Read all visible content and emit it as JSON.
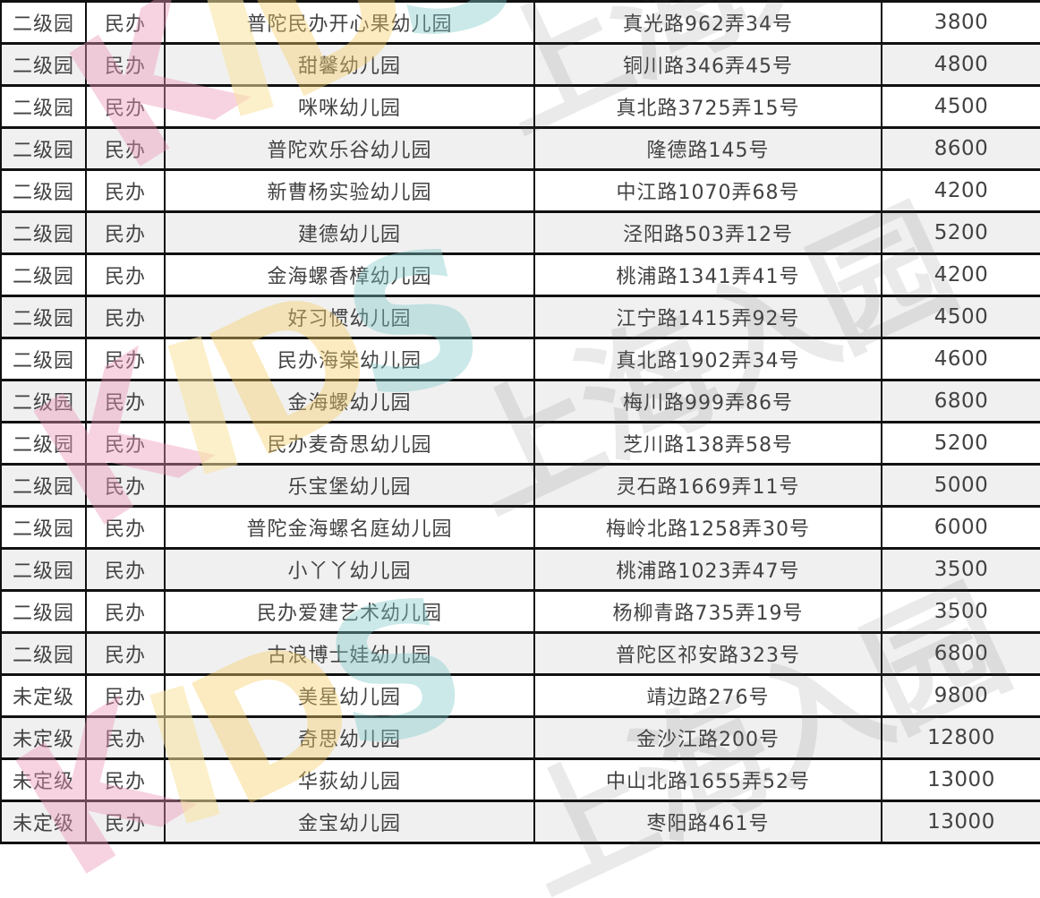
{
  "table": {
    "column_keys": [
      "level",
      "type",
      "name",
      "address",
      "price"
    ],
    "rows": [
      {
        "level": "二级园",
        "type": "民办",
        "name": "普陀民办开心果幼儿园",
        "address": "真光路962弄34号",
        "price": "3800"
      },
      {
        "level": "二级园",
        "type": "民办",
        "name": "甜馨幼儿园",
        "address": "铜川路346弄45号",
        "price": "4800"
      },
      {
        "level": "二级园",
        "type": "民办",
        "name": "咪咪幼儿园",
        "address": "真北路3725弄15号",
        "price": "4500"
      },
      {
        "level": "二级园",
        "type": "民办",
        "name": "普陀欢乐谷幼儿园",
        "address": "隆德路145号",
        "price": "8600"
      },
      {
        "level": "二级园",
        "type": "民办",
        "name": "新曹杨实验幼儿园",
        "address": "中江路1070弄68号",
        "price": "4200"
      },
      {
        "level": "二级园",
        "type": "民办",
        "name": "建德幼儿园",
        "address": "泾阳路503弄12号",
        "price": "5200"
      },
      {
        "level": "二级园",
        "type": "民办",
        "name": "金海螺香樟幼儿园",
        "address": "桃浦路1341弄41号",
        "price": "4200"
      },
      {
        "level": "二级园",
        "type": "民办",
        "name": "好习惯幼儿园",
        "address": "江宁路1415弄92号",
        "price": "4500"
      },
      {
        "level": "二级园",
        "type": "民办",
        "name": "民办海棠幼儿园",
        "address": "真北路1902弄34号",
        "price": "4600"
      },
      {
        "level": "二级园",
        "type": "民办",
        "name": "金海螺幼儿园",
        "address": "梅川路999弄86号",
        "price": "6800"
      },
      {
        "level": "二级园",
        "type": "民办",
        "name": "民办麦奇思幼儿园",
        "address": "芝川路138弄58号",
        "price": "5200"
      },
      {
        "level": "二级园",
        "type": "民办",
        "name": "乐宝堡幼儿园",
        "address": "灵石路1669弄11号",
        "price": "5000"
      },
      {
        "level": "二级园",
        "type": "民办",
        "name": "普陀金海螺名庭幼儿园",
        "address": "梅岭北路1258弄30号",
        "price": "6000"
      },
      {
        "level": "二级园",
        "type": "民办",
        "name": "小丫丫幼儿园",
        "address": "桃浦路1023弄47号",
        "price": "3500"
      },
      {
        "level": "二级园",
        "type": "民办",
        "name": "民办爱建艺术幼儿园",
        "address": "杨柳青路735弄19号",
        "price": "3500"
      },
      {
        "level": "二级园",
        "type": "民办",
        "name": "古浪博士娃幼儿园",
        "address": "普陀区祁安路323号",
        "price": "6800"
      },
      {
        "level": "未定级",
        "type": "民办",
        "name": "美星幼儿园",
        "address": "靖边路276号",
        "price": "9800"
      },
      {
        "level": "未定级",
        "type": "民办",
        "name": "奇思幼儿园",
        "address": "金沙江路200号",
        "price": "12800"
      },
      {
        "level": "未定级",
        "type": "民办",
        "name": "华荻幼儿园",
        "address": "中山北路1655弄52号",
        "price": "13000"
      },
      {
        "level": "未定级",
        "type": "民办",
        "name": "金宝幼儿园",
        "address": "枣阳路461号",
        "price": "13000"
      }
    ]
  },
  "watermarks": {
    "shanghai_text": "上海入园",
    "kids_letters": [
      "K",
      "I",
      "D",
      "S"
    ],
    "kids_colors": {
      "k": "#ec96b9",
      "i": "#fae4a0",
      "d": "#f7d069",
      "s": "#7dc8c8"
    },
    "gray_text_color": "#808080"
  },
  "colors": {
    "row_background": "#ffffff",
    "row_alt_background": "#f0f0f0",
    "grid_border": "#111111",
    "cell_text": "#424242"
  }
}
